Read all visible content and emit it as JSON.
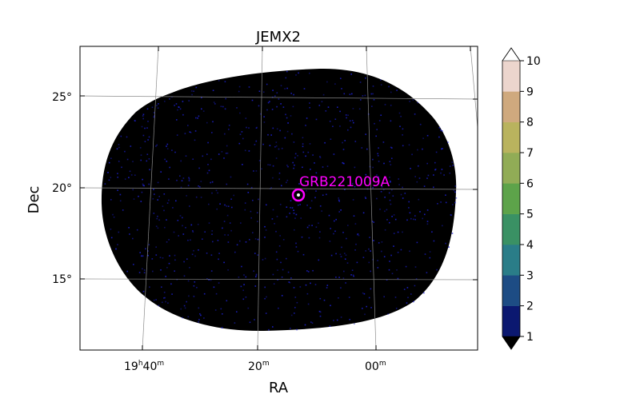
{
  "chart_data": {
    "type": "heatmap",
    "title": "JEMX2",
    "xlabel": "RA",
    "ylabel": "Dec",
    "ra_ticks": [
      {
        "label": "19",
        "unit": "h",
        "extra": "40",
        "extra_unit": "m"
      },
      {
        "label": "20",
        "unit": "m"
      },
      {
        "label": "00",
        "unit": "m"
      }
    ],
    "dec_ticks": [
      {
        "label": "25°"
      },
      {
        "label": "20°"
      },
      {
        "label": "15°"
      }
    ],
    "source": {
      "name": "GRB221009A",
      "color": "#ff00ff"
    },
    "map_color": "#000000",
    "noise_color": "#1e22d8",
    "colorbar": {
      "levels": [
        "1",
        "2",
        "3",
        "4",
        "5",
        "6",
        "7",
        "8",
        "9",
        "10"
      ],
      "colors": [
        "#0b1870",
        "#1d4c84",
        "#2a7d88",
        "#3a9164",
        "#5da34a",
        "#91ac56",
        "#b9b35e",
        "#cfa97e",
        "#ecd5cd"
      ],
      "under_color": "#000000",
      "over_color": "#ffffff"
    },
    "grid": true
  }
}
